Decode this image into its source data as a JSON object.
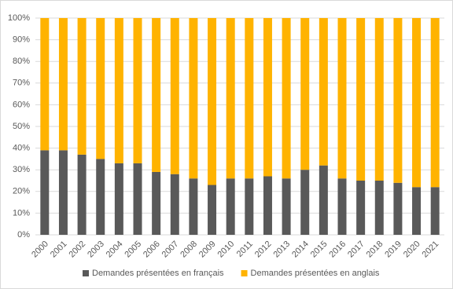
{
  "chart_data": {
    "type": "stacked_bar",
    "categories": [
      "2000",
      "2001",
      "2002",
      "2003",
      "2004",
      "2005",
      "2006",
      "2007",
      "2008",
      "2009",
      "2010",
      "2011",
      "2012",
      "2013",
      "2014",
      "2015",
      "2016",
      "2017",
      "2018",
      "2019",
      "2020",
      "2021"
    ],
    "series": [
      {
        "name": "Demandes présentées en français",
        "color": "#595959",
        "values": [
          39,
          39,
          37,
          35,
          33,
          33,
          29,
          28,
          26,
          23,
          26,
          26,
          27,
          26,
          30,
          32,
          26,
          25,
          25,
          24,
          22,
          22
        ]
      },
      {
        "name": "Demandes présentées en anglais",
        "color": "#ffb300",
        "values": [
          61,
          61,
          63,
          65,
          67,
          67,
          71,
          72,
          74,
          77,
          74,
          74,
          73,
          74,
          70,
          68,
          74,
          75,
          75,
          76,
          78,
          78
        ]
      }
    ],
    "ylim": [
      0,
      100
    ],
    "yticks": [
      {
        "value": 0,
        "label": "0%"
      },
      {
        "value": 10,
        "label": "10%"
      },
      {
        "value": 20,
        "label": "20%"
      },
      {
        "value": 30,
        "label": "30%"
      },
      {
        "value": 40,
        "label": "40%"
      },
      {
        "value": 50,
        "label": "50%"
      },
      {
        "value": 60,
        "label": "60%"
      },
      {
        "value": 70,
        "label": "70%"
      },
      {
        "value": 80,
        "label": "80%"
      },
      {
        "value": 90,
        "label": "90%"
      },
      {
        "value": 100,
        "label": "100%"
      }
    ],
    "grid": true,
    "legend": "bottom"
  }
}
